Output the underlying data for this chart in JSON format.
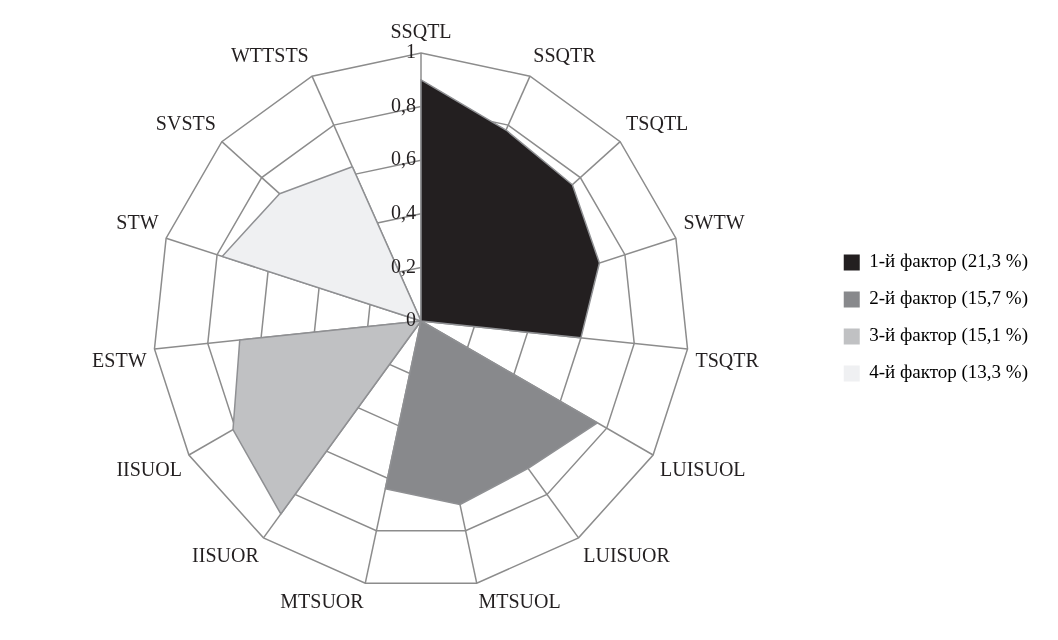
{
  "chart_data": {
    "type": "radar",
    "categories": [
      "SSQTL",
      "SSQTR",
      "TSQTL",
      "SWTW",
      "TSQTR",
      "LUISUOL",
      "LUISUOR",
      "MTSUOL",
      "MTSUOR",
      "IISUOR",
      "IISUOL",
      "ESTW",
      "STW",
      "SVSTS",
      "WTTSTS"
    ],
    "series": [
      {
        "name": "1-й фактор (21,3 %)",
        "color": "#231f20",
        "values": [
          0.9,
          0.78,
          0.76,
          0.7,
          0.6,
          0,
          0,
          0,
          0,
          0,
          0,
          0,
          0,
          0,
          0
        ]
      },
      {
        "name": "2-й фактор (15,7 %)",
        "color": "#88898c",
        "values": [
          0,
          0,
          0,
          0,
          0,
          0.76,
          0.68,
          0.7,
          0.64,
          0,
          0,
          0,
          0,
          0,
          0
        ]
      },
      {
        "name": "3-й фактор (15,1 %)",
        "color": "#c0c1c3",
        "values": [
          0,
          0,
          0,
          0,
          0,
          0,
          0,
          0,
          0,
          0.89,
          0.81,
          0.68,
          0,
          0,
          0
        ]
      },
      {
        "name": "4-й фактор (13,3 %)",
        "color": "#eff0f2",
        "values": [
          0,
          0,
          0,
          0,
          0,
          0,
          0,
          0,
          0,
          0,
          0,
          0,
          0.78,
          0.71,
          0.63
        ]
      }
    ],
    "ylim": [
      0,
      1
    ],
    "yticks": [
      0,
      {
        "value": 0.2,
        "label": "0,2"
      },
      {
        "value": 0.4,
        "label": "0,4"
      },
      {
        "value": 0.6,
        "label": "0,6"
      },
      {
        "value": 0.8,
        "label": "0,8"
      },
      1
    ],
    "grid": true,
    "legend": "right",
    "marker": "none"
  }
}
